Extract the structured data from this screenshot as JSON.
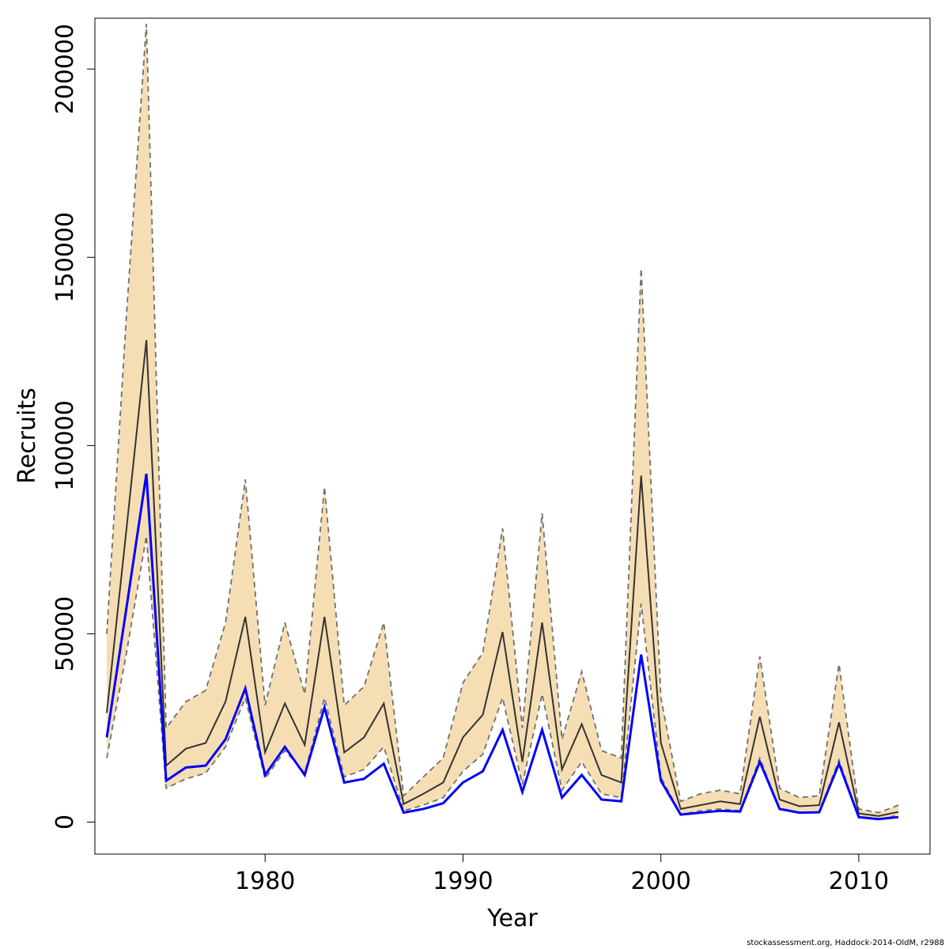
{
  "chart_data": {
    "type": "line",
    "xlabel": "Year",
    "ylabel": "Recruits",
    "xlim": [
      1971.4,
      2013.6
    ],
    "ylim": [
      -8500,
      213500
    ],
    "x_ticks": [
      1980,
      1990,
      2000,
      2010
    ],
    "y_ticks": [
      0,
      50000,
      100000,
      150000,
      200000
    ],
    "grid": false,
    "x": [
      1972,
      1973,
      1974,
      1975,
      1976,
      1977,
      1978,
      1979,
      1980,
      1981,
      1982,
      1983,
      1984,
      1985,
      1986,
      1987,
      1988,
      1989,
      1990,
      1991,
      1992,
      1993,
      1994,
      1995,
      1996,
      1997,
      1998,
      1999,
      2000,
      2001,
      2002,
      2003,
      2004,
      2005,
      2006,
      2007,
      2008,
      2009,
      2010,
      2011,
      2012
    ],
    "band": {
      "upper": [
        50000,
        135000,
        212000,
        25000,
        32000,
        35000,
        53000,
        91000,
        31000,
        53000,
        34000,
        89000,
        31000,
        36000,
        53000,
        7000,
        12000,
        17000,
        37000,
        45000,
        78000,
        25000,
        82000,
        22000,
        40000,
        19000,
        17000,
        147000,
        33000,
        5500,
        7500,
        8500,
        7500,
        44000,
        9000,
        6500,
        7000,
        42000,
        3500,
        2500,
        4500
      ],
      "lower": [
        17000,
        45000,
        76000,
        9000,
        11500,
        13000,
        20000,
        33000,
        11500,
        19000,
        13000,
        33000,
        12000,
        14000,
        20000,
        3000,
        4500,
        6500,
        13500,
        18000,
        33000,
        10000,
        34000,
        8500,
        16000,
        7500,
        6500,
        58000,
        12000,
        2000,
        3000,
        3500,
        3000,
        17000,
        3500,
        2500,
        2800,
        16500,
        1200,
        800,
        1800
      ],
      "color": "#F5DEB3",
      "dash_color": "#707070"
    },
    "series": [
      {
        "values": [
          29000,
          78000,
          128000,
          15000,
          19500,
          21000,
          32000,
          54500,
          18500,
          31500,
          20500,
          54500,
          18500,
          22500,
          31500,
          4800,
          7500,
          10500,
          22500,
          28500,
          50500,
          16000,
          53000,
          14000,
          26000,
          12500,
          10500,
          92000,
          21000,
          3500,
          4500,
          5500,
          4800,
          28000,
          6000,
          4200,
          4500,
          26500,
          2300,
          1600,
          2700
        ],
        "color": "#333333"
      },
      {
        "values": [
          22500,
          57000,
          92500,
          11000,
          14500,
          15000,
          22000,
          35500,
          12500,
          20000,
          12500,
          30500,
          10500,
          11500,
          15500,
          2500,
          3500,
          5000,
          10500,
          13500,
          24500,
          8000,
          24500,
          6500,
          12500,
          6000,
          5500,
          44500,
          11000,
          2000,
          2500,
          3000,
          2800,
          16000,
          3500,
          2500,
          2600,
          15500,
          1300,
          800,
          1300
        ],
        "color": "#0000FF"
      }
    ]
  },
  "footer_text": "stockassessment.org, Haddock-2014-OldM, r2988"
}
